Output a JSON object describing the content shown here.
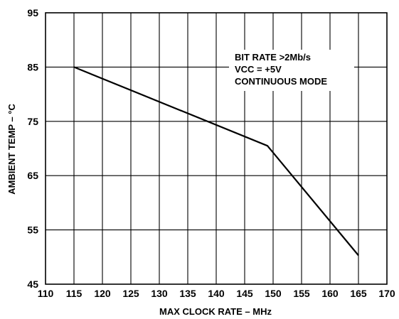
{
  "chart_data": {
    "type": "line",
    "xlabel": "MAX CLOCK RATE – MHz",
    "ylabel": "AMBIENT TEMP – °C",
    "xlim": [
      110,
      170
    ],
    "ylim": [
      45,
      95
    ],
    "x_ticks": [
      110,
      115,
      120,
      125,
      130,
      135,
      140,
      145,
      150,
      155,
      160,
      165,
      170
    ],
    "y_ticks": [
      45,
      55,
      65,
      75,
      85,
      95
    ],
    "x_ticks_text": [
      "110",
      "115",
      "120",
      "125",
      "130",
      "135",
      "140",
      "145",
      "150",
      "155",
      "160",
      "165",
      "170"
    ],
    "y_ticks_text": [
      "45",
      "55",
      "65",
      "75",
      "85",
      "95"
    ],
    "grid": true,
    "legend": "none",
    "annotations": [
      "BIT RATE >2Mb/s",
      "VCC = +5V",
      "CONTINUOUS MODE"
    ],
    "series": [
      {
        "x": [
          115,
          149,
          165
        ],
        "y": [
          85,
          70.5,
          50.3
        ]
      }
    ],
    "colors": {
      "line": "#000000",
      "grid": "#000000",
      "background": "#ffffff"
    }
  }
}
